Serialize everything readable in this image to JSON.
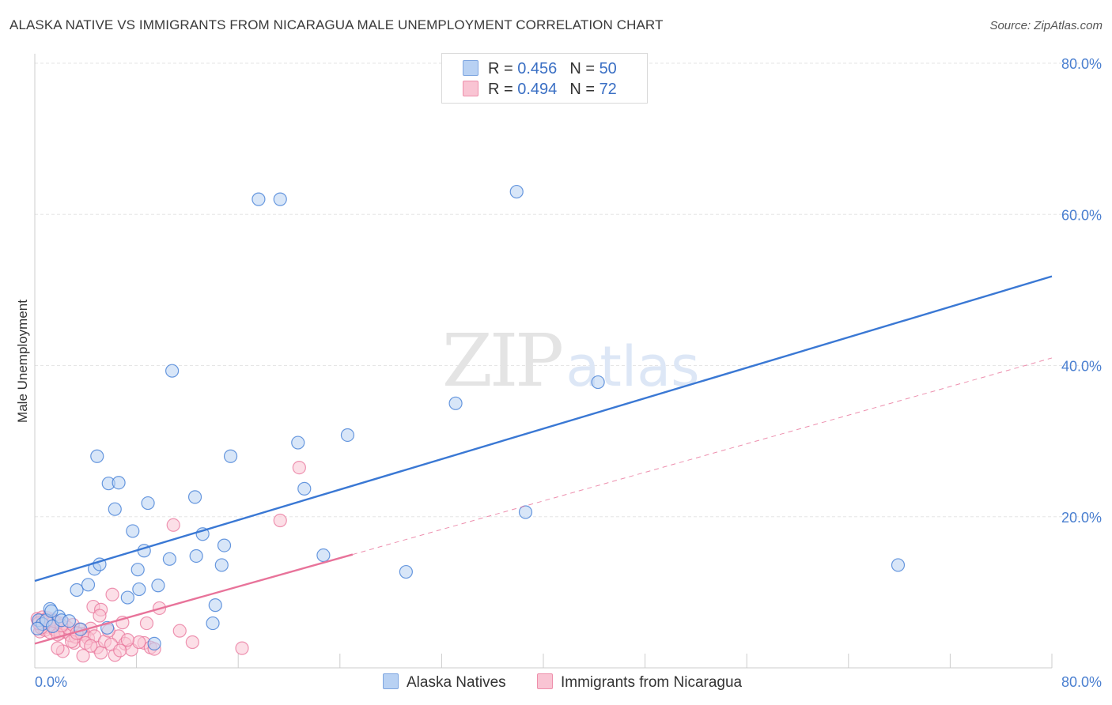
{
  "title": "ALASKA NATIVE VS IMMIGRANTS FROM NICARAGUA MALE UNEMPLOYMENT CORRELATION CHART",
  "source": "Source: ZipAtlas.com",
  "watermark": {
    "zip": "ZIP",
    "atlas": "atlas"
  },
  "legend": {
    "r_label": "R =",
    "n_label": "N =",
    "rows": [
      {
        "r": "0.456",
        "n": "50",
        "swatch_fill": "#b8d1f3",
        "swatch_stroke": "#7ea6e0"
      },
      {
        "r": "0.494",
        "n": "72",
        "swatch_fill": "#f9c4d3",
        "swatch_stroke": "#ee8fab"
      }
    ]
  },
  "bottom_legend": [
    {
      "label": "Alaska Natives",
      "swatch_fill": "#b8d1f3",
      "swatch_stroke": "#7ea6e0"
    },
    {
      "label": "Immigrants from Nicaragua",
      "swatch_fill": "#f9c4d3",
      "swatch_stroke": "#ee8fab"
    }
  ],
  "chart_data": {
    "type": "scatter",
    "title": "ALASKA NATIVE VS IMMIGRANTS FROM NICARAGUA MALE UNEMPLOYMENT CORRELATION CHART",
    "xlabel": "",
    "ylabel": "Male Unemployment",
    "xlim": [
      0,
      80
    ],
    "ylim": [
      0,
      80
    ],
    "x_tick_labels": [
      {
        "value": 0,
        "label": "0.0%"
      },
      {
        "value": 80,
        "label": "80.0%"
      }
    ],
    "y_tick_labels": [
      {
        "value": 20,
        "label": "20.0%"
      },
      {
        "value": 40,
        "label": "40.0%"
      },
      {
        "value": 60,
        "label": "60.0%"
      },
      {
        "value": 80,
        "label": "80.0%"
      }
    ],
    "y_gridlines": [
      20,
      40,
      60,
      80
    ],
    "grid": true,
    "legend_position": "top-center",
    "series": [
      {
        "name": "Alaska Natives",
        "color": "#3a78d4",
        "fill": "#b8d1f3",
        "r": 0.456,
        "n": 50,
        "points": [
          [
            17.6,
            62
          ],
          [
            19.3,
            62
          ],
          [
            37.9,
            63
          ],
          [
            10.8,
            39.3
          ],
          [
            33.1,
            35
          ],
          [
            44.3,
            37.8
          ],
          [
            4.9,
            28
          ],
          [
            15.4,
            28
          ],
          [
            20.7,
            29.8
          ],
          [
            24.6,
            30.8
          ],
          [
            5.8,
            24.4
          ],
          [
            6.6,
            24.5
          ],
          [
            12.6,
            22.6
          ],
          [
            6.3,
            21
          ],
          [
            8.9,
            21.8
          ],
          [
            21.2,
            23.7
          ],
          [
            7.7,
            18.1
          ],
          [
            13.2,
            17.7
          ],
          [
            38.6,
            20.6
          ],
          [
            8.6,
            15.5
          ],
          [
            10.6,
            14.4
          ],
          [
            12.7,
            14.8
          ],
          [
            14.9,
            16.2
          ],
          [
            14.7,
            13.6
          ],
          [
            22.7,
            14.9
          ],
          [
            29.2,
            12.7
          ],
          [
            67.9,
            13.6
          ],
          [
            4.7,
            13.1
          ],
          [
            5.1,
            13.7
          ],
          [
            8.1,
            13
          ],
          [
            3.3,
            10.3
          ],
          [
            4.2,
            11
          ],
          [
            8.2,
            10.4
          ],
          [
            9.7,
            10.9
          ],
          [
            7.3,
            9.3
          ],
          [
            14.2,
            8.3
          ],
          [
            1.2,
            7.8
          ],
          [
            1.9,
            6.8
          ],
          [
            5.7,
            5.3
          ],
          [
            14,
            5.9
          ],
          [
            9.4,
            3.2
          ],
          [
            0.3,
            6.3
          ],
          [
            0.6,
            5.8
          ],
          [
            0.9,
            6.3
          ],
          [
            1.4,
            5.5
          ],
          [
            0.2,
            5.2
          ],
          [
            2.1,
            6.3
          ],
          [
            3.6,
            5.1
          ],
          [
            1.3,
            7.5
          ],
          [
            2.7,
            6.2
          ]
        ],
        "trend": {
          "x0": 0,
          "y0": 11.5,
          "x1": 80,
          "y1": 51.8,
          "style": "solid"
        }
      },
      {
        "name": "Immigrants from Nicaragua",
        "color": "#e8739a",
        "fill": "#f9c4d3",
        "r": 0.494,
        "n": 72,
        "points": [
          [
            20.8,
            26.5
          ],
          [
            19.3,
            19.5
          ],
          [
            10.9,
            18.9
          ],
          [
            6.1,
            9.7
          ],
          [
            4.6,
            8.1
          ],
          [
            5.2,
            7.7
          ],
          [
            9.8,
            7.9
          ],
          [
            6.9,
            6
          ],
          [
            8.8,
            5.9
          ],
          [
            5.1,
            6.9
          ],
          [
            3.5,
            5.1
          ],
          [
            4.4,
            5.2
          ],
          [
            3.9,
            4.4
          ],
          [
            6.6,
            4.2
          ],
          [
            8.6,
            3.3
          ],
          [
            11.4,
            4.9
          ],
          [
            3.1,
            3.3
          ],
          [
            4.9,
            2.7
          ],
          [
            7.1,
            3.2
          ],
          [
            6.3,
            1.7
          ],
          [
            5.2,
            2
          ],
          [
            7.6,
            2.4
          ],
          [
            9.1,
            2.7
          ],
          [
            12.4,
            3.4
          ],
          [
            16.3,
            2.6
          ],
          [
            3.8,
            1.6
          ],
          [
            2.2,
            2.2
          ],
          [
            1.8,
            2.6
          ],
          [
            0.3,
            6.1
          ],
          [
            0.5,
            5.6
          ],
          [
            0.7,
            6.3
          ],
          [
            0.9,
            5.4
          ],
          [
            1.1,
            6
          ],
          [
            1.3,
            5.8
          ],
          [
            1.5,
            5.2
          ],
          [
            1.7,
            6.1
          ],
          [
            1.9,
            5.5
          ],
          [
            0.4,
            4.8
          ],
          [
            0.8,
            5
          ],
          [
            1.2,
            4.7
          ],
          [
            1.6,
            5
          ],
          [
            2,
            4.6
          ],
          [
            2.4,
            4.8
          ],
          [
            2.8,
            4.3
          ],
          [
            3.2,
            4.1
          ],
          [
            3.7,
            4.5
          ],
          [
            4.2,
            3.9
          ],
          [
            4.7,
            4.2
          ],
          [
            5.5,
            3.5
          ],
          [
            6,
            3.1
          ],
          [
            0.2,
            6.5
          ],
          [
            0.6,
            6.7
          ],
          [
            1,
            6.6
          ],
          [
            1.4,
            6.4
          ],
          [
            2.3,
            5.9
          ],
          [
            2.6,
            5.3
          ],
          [
            3,
            5.7
          ],
          [
            0.5,
            5.3
          ],
          [
            1.8,
            4.4
          ],
          [
            2.9,
            3.5
          ],
          [
            4,
            3.3
          ],
          [
            5.8,
            4.9
          ],
          [
            8.2,
            3.4
          ],
          [
            9.4,
            2.5
          ],
          [
            0.3,
            5.9
          ],
          [
            0.9,
            6.1
          ],
          [
            1.5,
            6.2
          ],
          [
            2.1,
            5.6
          ],
          [
            3.3,
            4.6
          ],
          [
            4.4,
            2.9
          ],
          [
            7.3,
            3.7
          ],
          [
            6.7,
            2.3
          ]
        ],
        "trend": {
          "x0": 0,
          "y0": 3.2,
          "x1": 25,
          "y1": 15,
          "style": "solid"
        },
        "trend_extension": {
          "x0": 25,
          "y0": 15,
          "x1": 80,
          "y1": 41,
          "style": "dashed"
        }
      }
    ]
  }
}
